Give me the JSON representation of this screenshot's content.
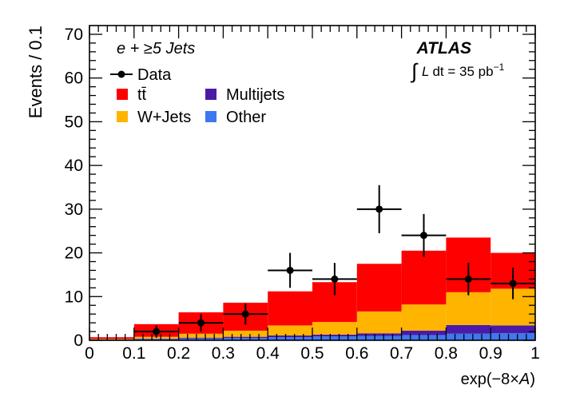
{
  "chart_data": {
    "type": "bar",
    "stacked": true,
    "title": "",
    "channel_label": "e + ≥5 Jets",
    "experiment": "ATLAS",
    "lumi_prefix": "L dt = 35 pb",
    "lumi_exponent": "−1",
    "xlabel_prefix": "exp(−8×",
    "xlabel_var": "A",
    "xlabel_suffix": ")",
    "ylabel": "Events / 0.1",
    "xlim": [
      0,
      1
    ],
    "ylim": [
      0,
      72
    ],
    "x_ticks": [
      "0",
      "0.1",
      "0.2",
      "0.3",
      "0.4",
      "0.5",
      "0.6",
      "0.7",
      "0.8",
      "0.9",
      "1"
    ],
    "y_ticks": [
      "0",
      "10",
      "20",
      "30",
      "40",
      "50",
      "60",
      "70"
    ],
    "bin_edges": [
      0,
      0.1,
      0.2,
      0.3,
      0.4,
      0.5,
      0.6,
      0.7,
      0.8,
      0.9,
      1.0
    ],
    "series": [
      {
        "name": "Other",
        "color": "#3c78f0",
        "values": [
          0.2,
          0.3,
          0.4,
          0.5,
          0.7,
          0.9,
          1.0,
          1.2,
          1.5,
          1.6
        ]
      },
      {
        "name": "Multijets",
        "color": "#4b1aa8",
        "values": [
          0.0,
          0.1,
          0.2,
          0.3,
          0.4,
          0.4,
          0.6,
          1.0,
          2.0,
          1.8
        ]
      },
      {
        "name": "W+Jets",
        "color": "#ffb400",
        "values": [
          0.1,
          0.4,
          0.9,
          1.4,
          2.3,
          2.9,
          5.0,
          6.0,
          7.5,
          8.4
        ]
      },
      {
        "name": "tt̄",
        "color": "#ff0000",
        "values": [
          0.4,
          2.9,
          4.9,
          6.4,
          7.8,
          9.1,
          10.9,
          12.3,
          12.5,
          8.2
        ]
      }
    ],
    "data": {
      "name": "Data",
      "x": [
        0.15,
        0.25,
        0.35,
        0.45,
        0.55,
        0.65,
        0.75,
        0.85,
        0.95
      ],
      "y": [
        2,
        4,
        6,
        16,
        14,
        30,
        24,
        14,
        13
      ],
      "yerr": [
        1.4,
        2.0,
        2.4,
        4.0,
        3.7,
        5.5,
        4.9,
        3.7,
        3.6
      ]
    },
    "legend": [
      {
        "label": "Data",
        "kind": "marker"
      },
      {
        "label": "tt̄",
        "color": "#ff0000"
      },
      {
        "label": "Multijets",
        "color": "#4b1aa8"
      },
      {
        "label": "W+Jets",
        "color": "#ffb400"
      },
      {
        "label": "Other",
        "color": "#3c78f0"
      }
    ]
  }
}
